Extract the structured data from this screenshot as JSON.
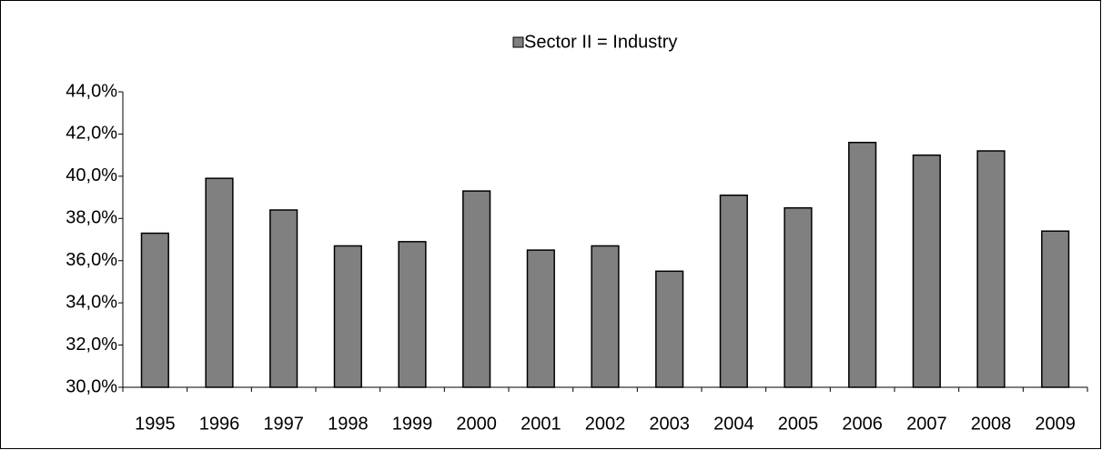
{
  "chart_data": {
    "type": "bar",
    "legend": "Sector II = Industry",
    "categories": [
      "1995",
      "1996",
      "1997",
      "1998",
      "1999",
      "2000",
      "2001",
      "2002",
      "2003",
      "2004",
      "2005",
      "2006",
      "2007",
      "2008",
      "2009"
    ],
    "values": [
      37.3,
      39.9,
      38.4,
      36.7,
      36.9,
      39.3,
      36.5,
      36.7,
      35.5,
      39.1,
      38.5,
      41.6,
      41.0,
      41.2,
      37.4
    ],
    "color": "#808080",
    "ylim": [
      30,
      44
    ],
    "yticks": [
      {
        "value": 30,
        "label": "30,0%"
      },
      {
        "value": 32,
        "label": "32,0%"
      },
      {
        "value": 34,
        "label": "34,0%"
      },
      {
        "value": 36,
        "label": "36,0%"
      },
      {
        "value": 38,
        "label": "38,0%"
      },
      {
        "value": 40,
        "label": "40,0%"
      },
      {
        "value": 42,
        "label": "42,0%"
      },
      {
        "value": 44,
        "label": "44,0%"
      }
    ],
    "grid": false
  }
}
